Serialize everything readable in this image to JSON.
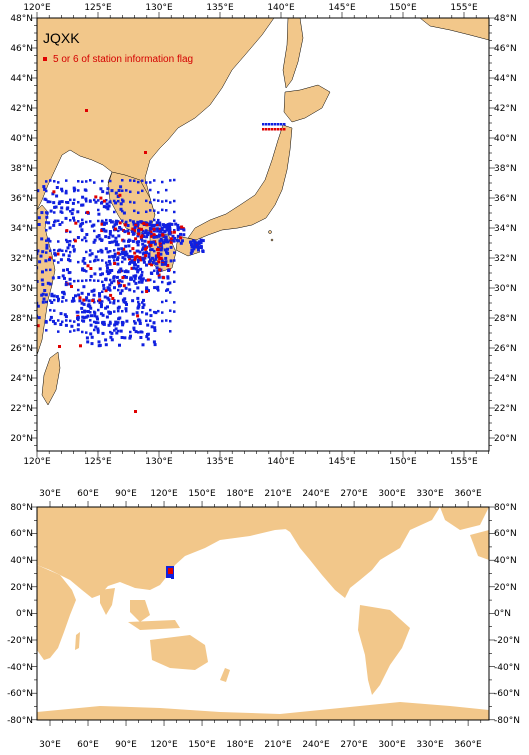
{
  "top_map": {
    "legend": {
      "title": "JQXK",
      "flag_label": "5 or 6 of station information flag",
      "flag_color": "#e00000",
      "station_color": "#1020e0"
    },
    "x_ticks": [
      "120°E",
      "125°E",
      "130°E",
      "135°E",
      "140°E",
      "145°E",
      "150°E",
      "155°E"
    ],
    "y_ticks_left": [
      "48°N",
      "46°N",
      "44°N",
      "42°N",
      "40°N",
      "38°N",
      "36°N",
      "34°N",
      "32°N",
      "30°N",
      "28°N",
      "26°N",
      "24°N",
      "22°N",
      "20°N"
    ],
    "y_ticks_right": [
      "48°N",
      "46°N",
      "44°N",
      "42°N",
      "40°N",
      "38°N",
      "36°N",
      "34°N",
      "32°N",
      "30°N",
      "28°N",
      "26°N",
      "24°N",
      "22°N",
      "20°N"
    ],
    "extent": {
      "lon": [
        120,
        157
      ],
      "lat": [
        19,
        48
      ]
    }
  },
  "bottom_map": {
    "x_ticks": [
      "30°E",
      "60°E",
      "90°E",
      "120°E",
      "150°E",
      "180°E",
      "210°E",
      "240°E",
      "270°E",
      "300°E",
      "330°E",
      "360°E"
    ],
    "y_ticks_left": [
      "80°N",
      "60°N",
      "40°N",
      "20°N",
      "0°N",
      "-20°N",
      "-40°N",
      "-60°N",
      "-80°N"
    ],
    "y_ticks_right": [
      "80°N",
      "60°N",
      "40°N",
      "20°N",
      "0°N",
      "-20°N",
      "-40°N",
      "-60°N",
      "-80°N"
    ],
    "extent": {
      "lon": [
        20,
        380
      ],
      "lat": [
        -80,
        80
      ]
    }
  },
  "colors": {
    "land": "#f2c78a",
    "station": "#1020e0",
    "flag": "#e00000"
  }
}
